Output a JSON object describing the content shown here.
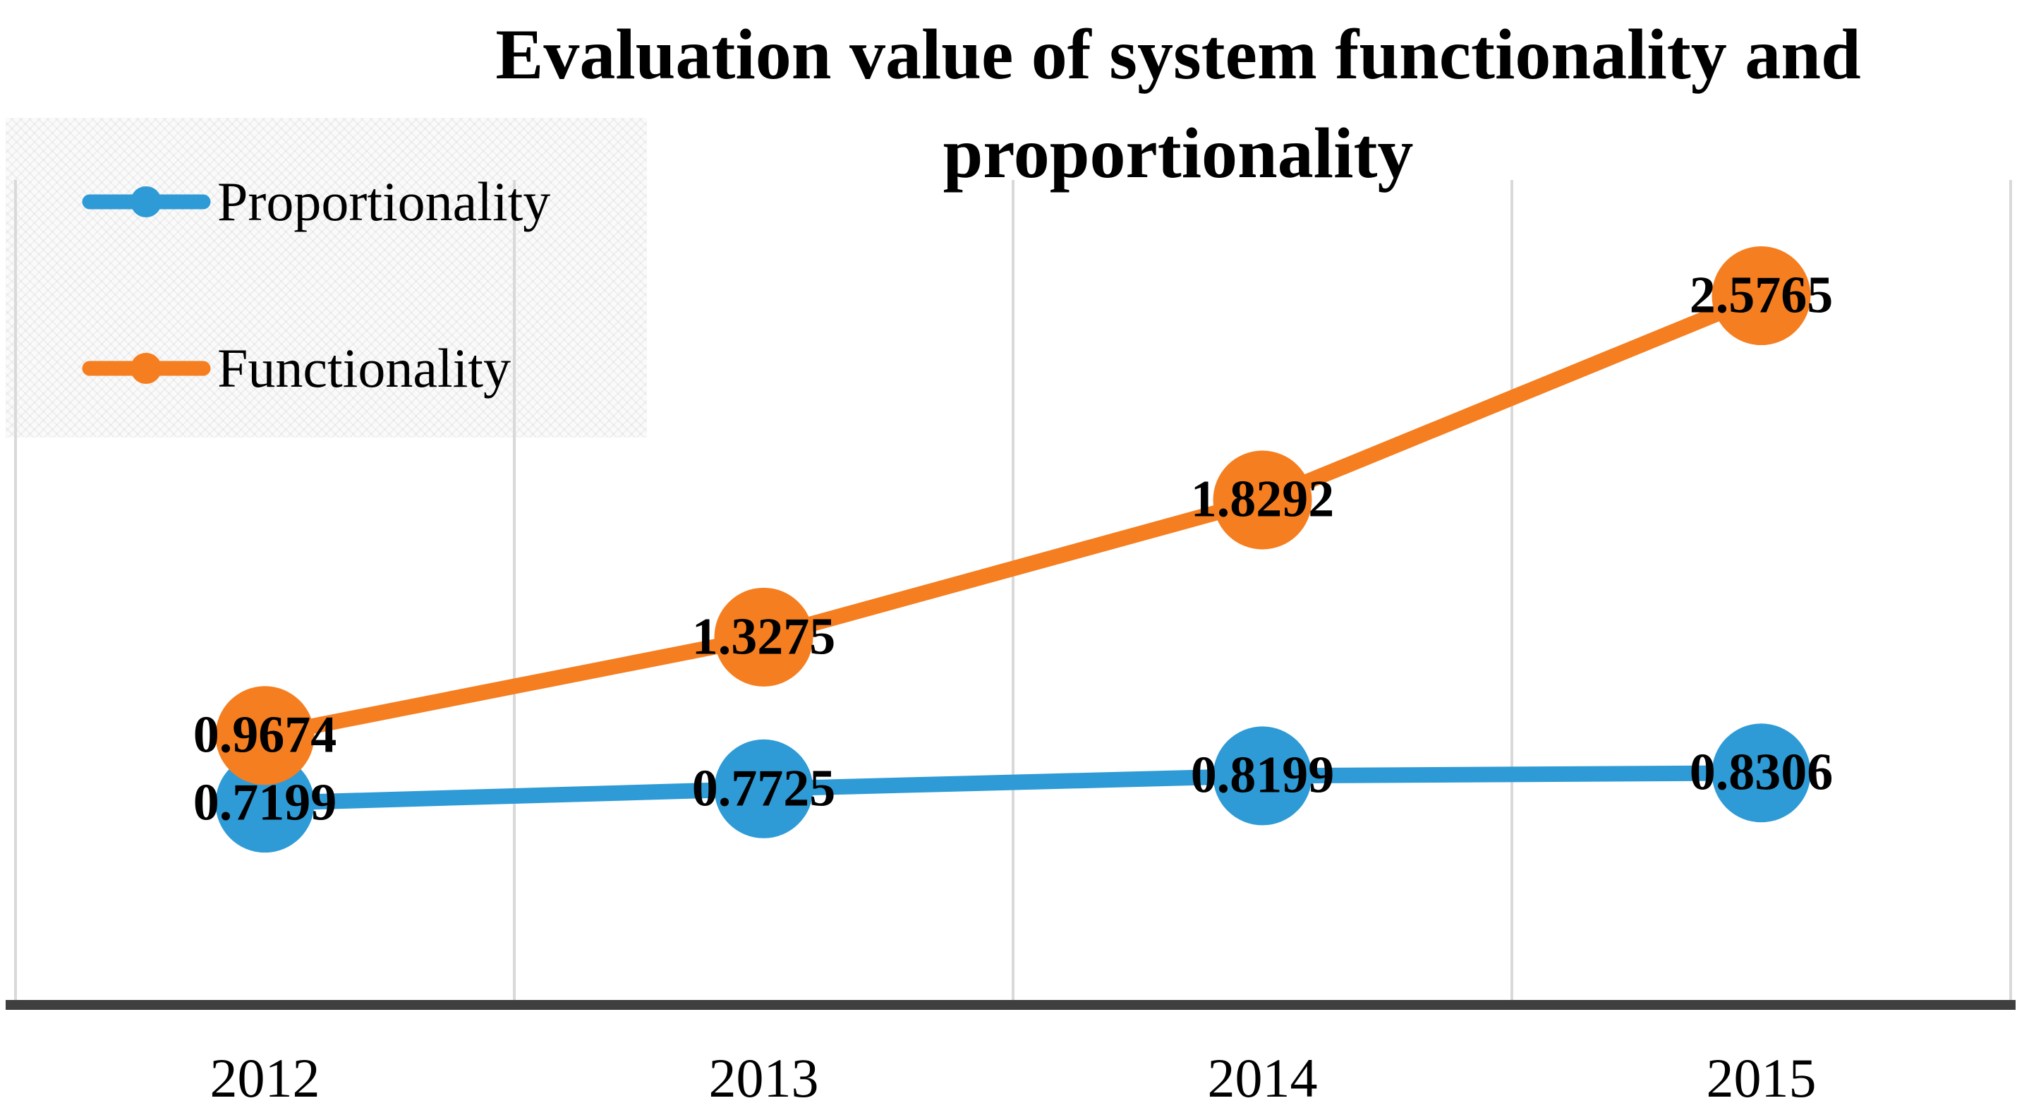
{
  "title": {
    "line1": "Evaluation value of system functionality and",
    "line2": "proportionality"
  },
  "legend": {
    "items": [
      {
        "label": "Proportionality",
        "color": "#2E9BD6"
      },
      {
        "label": "Functionality",
        "color": "#F57E20"
      }
    ]
  },
  "chart_data": {
    "type": "line",
    "title": "Evaluation value of system functionality and proportionality",
    "categories": [
      "2012",
      "2013",
      "2014",
      "2015"
    ],
    "series": [
      {
        "name": "Proportionality",
        "color": "#2E9BD6",
        "values": [
          0.7199,
          0.7725,
          0.8199,
          0.8306
        ]
      },
      {
        "name": "Functionality",
        "color": "#F57E20",
        "values": [
          0.9674,
          1.3275,
          1.8292,
          2.5765
        ]
      }
    ],
    "data_labels": [
      [
        "0.7199",
        "0.7725",
        "0.8199",
        "0.8306"
      ],
      [
        "0.9674",
        "1.3275",
        "1.8292",
        "2.5765"
      ]
    ],
    "xlabel": "",
    "ylabel": "",
    "ylim": [
      0,
      3
    ],
    "grid": "vertical-between-categories",
    "legend_position": "top-left-overlay",
    "marker": "circle",
    "colors": {
      "axis_line": "#3F3F3F",
      "gridline": "#D9D9D9",
      "label_text": "#000000",
      "background": "#FFFFFF",
      "legend_bg": "#FAFAFA"
    }
  }
}
